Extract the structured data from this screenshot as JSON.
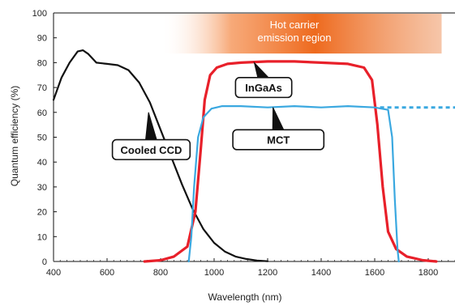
{
  "chart_data": {
    "type": "line",
    "title": "",
    "xlabel": "Wavelength (nm)",
    "ylabel": "Quantum efficiency (%)",
    "xlim": [
      400,
      1900
    ],
    "ylim": [
      0,
      100
    ],
    "x_ticks": [
      400,
      600,
      800,
      1000,
      1200,
      1400,
      1600,
      1800
    ],
    "y_ticks": [
      0,
      10,
      20,
      30,
      40,
      50,
      60,
      70,
      80,
      90,
      100
    ],
    "grid": false,
    "legend": "none",
    "region": {
      "label_line1": "Hot carrier",
      "label_line2": "emission region",
      "x_start": 800,
      "x_end": 1850,
      "color": "#f07a2a"
    },
    "series": [
      {
        "name": "Cooled CCD",
        "color": "#111111",
        "points": [
          [
            400,
            65
          ],
          [
            430,
            74
          ],
          [
            460,
            80
          ],
          [
            490,
            84.5
          ],
          [
            510,
            85
          ],
          [
            530,
            83.5
          ],
          [
            560,
            80
          ],
          [
            600,
            79.5
          ],
          [
            640,
            79
          ],
          [
            680,
            77
          ],
          [
            720,
            72
          ],
          [
            760,
            64
          ],
          [
            800,
            53
          ],
          [
            840,
            42
          ],
          [
            880,
            31
          ],
          [
            920,
            21
          ],
          [
            960,
            13
          ],
          [
            1000,
            7.5
          ],
          [
            1040,
            4
          ],
          [
            1080,
            2
          ],
          [
            1120,
            1
          ],
          [
            1160,
            0.4
          ],
          [
            1200,
            0.1
          ]
        ]
      },
      {
        "name": "InGaAs",
        "color": "#e8202a",
        "points": [
          [
            740,
            0
          ],
          [
            800,
            0.5
          ],
          [
            850,
            2
          ],
          [
            900,
            6
          ],
          [
            930,
            20
          ],
          [
            950,
            45
          ],
          [
            965,
            65
          ],
          [
            985,
            75
          ],
          [
            1010,
            78
          ],
          [
            1050,
            79.5
          ],
          [
            1100,
            80
          ],
          [
            1200,
            80.5
          ],
          [
            1300,
            80.5
          ],
          [
            1400,
            80
          ],
          [
            1500,
            79.5
          ],
          [
            1560,
            78
          ],
          [
            1590,
            73
          ],
          [
            1610,
            55
          ],
          [
            1630,
            30
          ],
          [
            1650,
            12
          ],
          [
            1680,
            5
          ],
          [
            1720,
            2
          ],
          [
            1780,
            0.5
          ],
          [
            1830,
            0
          ]
        ]
      },
      {
        "name": "MCT",
        "color": "#3aa8e0",
        "points": [
          [
            905,
            0
          ],
          [
            915,
            10
          ],
          [
            925,
            30
          ],
          [
            940,
            50
          ],
          [
            960,
            58
          ],
          [
            990,
            61.5
          ],
          [
            1030,
            62.5
          ],
          [
            1100,
            62.5
          ],
          [
            1200,
            62
          ],
          [
            1300,
            62.5
          ],
          [
            1400,
            62
          ],
          [
            1500,
            62.5
          ],
          [
            1600,
            62
          ],
          [
            1650,
            61
          ],
          [
            1665,
            50
          ],
          [
            1675,
            25
          ],
          [
            1685,
            5
          ],
          [
            1690,
            0
          ]
        ]
      },
      {
        "name": "MCT (extended)",
        "color": "#3aa8e0",
        "dashed": true,
        "points": [
          [
            1620,
            62
          ],
          [
            1900,
            62
          ]
        ]
      }
    ],
    "callouts": [
      {
        "label": "Cooled CCD",
        "box_x": [
          620,
          910
        ],
        "box_y": [
          41,
          49
        ],
        "point": [
          755,
          60
        ]
      },
      {
        "label": "InGaAs",
        "box_x": [
          1080,
          1290
        ],
        "box_y": [
          66,
          74
        ],
        "point": [
          1150,
          80
        ]
      },
      {
        "label": "MCT",
        "box_x": [
          1070,
          1410
        ],
        "box_y": [
          45,
          53
        ],
        "point": [
          1220,
          62
        ]
      }
    ]
  }
}
